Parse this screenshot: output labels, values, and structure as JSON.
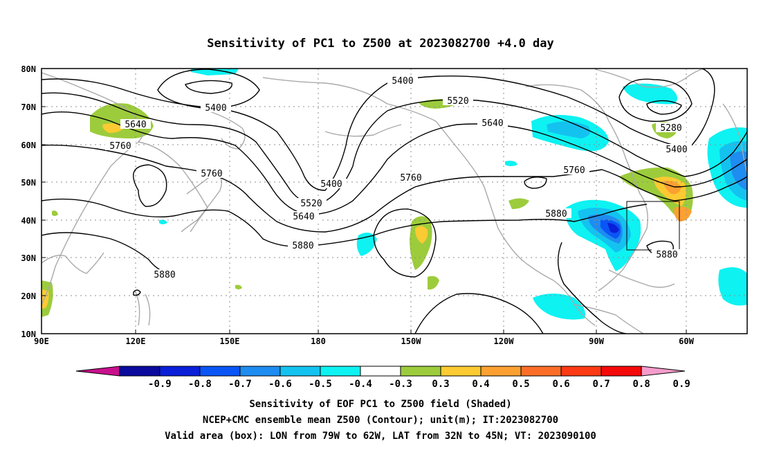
{
  "title": "Sensitivity of PC1 to Z500 at 2023082700 +4.0 day",
  "lat_ticks": [
    "80N",
    "70N",
    "60N",
    "50N",
    "40N",
    "30N",
    "20N",
    "10N"
  ],
  "lon_ticks": [
    "90E",
    "120E",
    "150E",
    "180",
    "150W",
    "120W",
    "90W",
    "60W"
  ],
  "contour_labels": [
    "5400",
    "5400",
    "5520",
    "5640",
    "5640",
    "5760",
    "5760",
    "5400",
    "5520",
    "5640",
    "5880",
    "5760",
    "5760",
    "5880",
    "5280",
    "5400",
    "5880",
    "5880"
  ],
  "colorbar": {
    "labels": [
      "-0.9",
      "-0.8",
      "-0.7",
      "-0.6",
      "-0.5",
      "-0.4",
      "-0.3",
      "0.3",
      "0.4",
      "0.5",
      "0.6",
      "0.7",
      "0.8",
      "0.9"
    ],
    "colors": [
      "#c8108c",
      "#0a0a9e",
      "#0a1fd8",
      "#0a55f5",
      "#1e8cf0",
      "#14c2f0",
      "#0ef2f2",
      "#ffffff",
      "#9ccc3c",
      "#fcca32",
      "#fca032",
      "#fc6e28",
      "#fc3a14",
      "#f50a0a",
      "#f59ccc"
    ]
  },
  "footer": {
    "line1": "Sensitivity of EOF PC1 to Z500 field (Shaded)",
    "line2": "NCEP+CMC ensemble mean Z500 (Contour); unit(m); IT:2023082700",
    "line3": "Valid area (box): LON from 79W to 62W, LAT from 32N to 45N; VT: 2023090100"
  }
}
